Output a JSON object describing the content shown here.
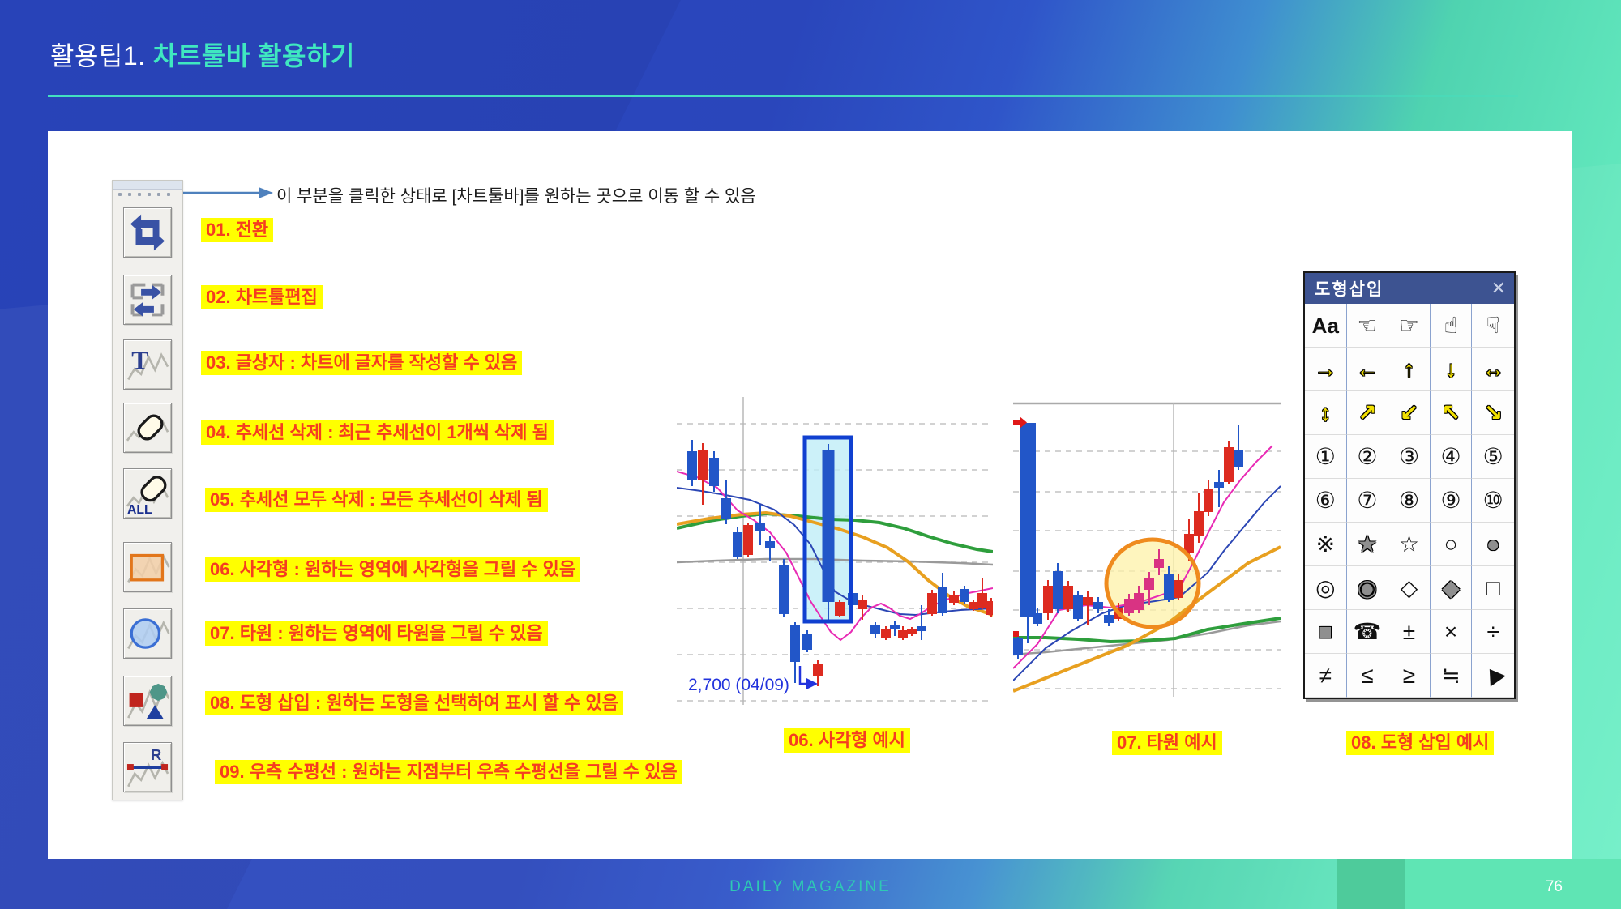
{
  "slide": {
    "title_prefix": "활용팁1. ",
    "title_main": "차트툴바 활용하기",
    "footer": "DAILY MAGAZINE",
    "page_number": "76"
  },
  "annotation": {
    "text": "이 부분을 클릭한 상태로 [차트툴바]를 원하는 곳으로 이동 할 수 있음"
  },
  "toolbar": {
    "buttons": [
      {
        "icon": "switch-icon",
        "tooltip": "전환"
      },
      {
        "icon": "chart-tool-edit-icon",
        "tooltip": "차트툴편집"
      },
      {
        "icon": "text-box-icon",
        "tooltip": "글상자"
      },
      {
        "icon": "trendline-delete-icon",
        "tooltip": "추세선 삭제"
      },
      {
        "icon": "trendline-delete-all-icon",
        "tooltip": "추세선 모두 삭제"
      },
      {
        "icon": "rectangle-icon",
        "tooltip": "사각형"
      },
      {
        "icon": "ellipse-icon",
        "tooltip": "타원"
      },
      {
        "icon": "shape-insert-icon",
        "tooltip": "도형 삽입"
      },
      {
        "icon": "right-horizontal-line-icon",
        "tooltip": "우측 수평선"
      }
    ]
  },
  "labels": [
    "01. 전환",
    "02. 차트툴편집",
    "03. 글상자 : 차트에 글자를 작성할 수 있음",
    "04. 추세선 삭제 : 최근 추세선이 1개씩 삭제 됨",
    "05. 추세선 모두 삭제 : 모든 추세선이 삭제 됨",
    "06. 사각형 : 원하는 영역에 사각형을 그릴 수 있음",
    "07. 타원 : 원하는 영역에 타원을 그릴 수 있음",
    "08. 도형 삽입 : 원하는 도형을 선택하여 표시 할 수 있음",
    "09. 우측 수평선 : 원하는 지점부터 우측 수평선을 그릴 수 있음"
  ],
  "dialog": {
    "title": "도형삽입",
    "close_glyph": "✕",
    "caption": "08. 도형 삽입 예시",
    "cells": [
      {
        "glyph": "Aa",
        "name": "text-label",
        "cls": "aa"
      },
      {
        "glyph": "☜",
        "name": "hand-point-left",
        "cls": ""
      },
      {
        "glyph": "☞",
        "name": "hand-point-right",
        "cls": ""
      },
      {
        "glyph": "☝",
        "name": "hand-point-up",
        "cls": ""
      },
      {
        "glyph": "☟",
        "name": "hand-point-down",
        "cls": ""
      },
      {
        "glyph": "→",
        "name": "arrow-right",
        "cls": "yellow"
      },
      {
        "glyph": "←",
        "name": "arrow-left",
        "cls": "yellow"
      },
      {
        "glyph": "↑",
        "name": "arrow-up",
        "cls": "yellow"
      },
      {
        "glyph": "↓",
        "name": "arrow-down",
        "cls": "yellow"
      },
      {
        "glyph": "↔",
        "name": "arrow-left-right",
        "cls": "yellow"
      },
      {
        "glyph": "↕",
        "name": "arrow-up-down",
        "cls": "yellow"
      },
      {
        "glyph": "↗",
        "name": "arrow-up-right",
        "cls": "yellow"
      },
      {
        "glyph": "↙",
        "name": "arrow-down-left",
        "cls": "yellow"
      },
      {
        "glyph": "↖",
        "name": "arrow-up-left",
        "cls": "yellow"
      },
      {
        "glyph": "↘",
        "name": "arrow-down-right",
        "cls": "yellow"
      },
      {
        "glyph": "①",
        "name": "circled-1",
        "cls": ""
      },
      {
        "glyph": "②",
        "name": "circled-2",
        "cls": ""
      },
      {
        "glyph": "③",
        "name": "circled-3",
        "cls": ""
      },
      {
        "glyph": "④",
        "name": "circled-4",
        "cls": ""
      },
      {
        "glyph": "⑤",
        "name": "circled-5",
        "cls": ""
      },
      {
        "glyph": "⑥",
        "name": "circled-6",
        "cls": ""
      },
      {
        "glyph": "⑦",
        "name": "circled-7",
        "cls": ""
      },
      {
        "glyph": "⑧",
        "name": "circled-8",
        "cls": ""
      },
      {
        "glyph": "⑨",
        "name": "circled-9",
        "cls": ""
      },
      {
        "glyph": "⑩",
        "name": "circled-10",
        "cls": ""
      },
      {
        "glyph": "※",
        "name": "reference-mark",
        "cls": ""
      },
      {
        "glyph": "★",
        "name": "star-filled",
        "cls": "grayfill"
      },
      {
        "glyph": "☆",
        "name": "star-outline",
        "cls": ""
      },
      {
        "glyph": "○",
        "name": "octagon-outline",
        "cls": ""
      },
      {
        "glyph": "●",
        "name": "octagon-filled",
        "cls": "grayfill"
      },
      {
        "glyph": "◎",
        "name": "double-circle",
        "cls": ""
      },
      {
        "glyph": "◉",
        "name": "fisheye-circle",
        "cls": "grayfill"
      },
      {
        "glyph": "◇",
        "name": "diamond-outline",
        "cls": ""
      },
      {
        "glyph": "◆",
        "name": "diamond-filled",
        "cls": "grayfill"
      },
      {
        "glyph": "□",
        "name": "square-outline",
        "cls": ""
      },
      {
        "glyph": "■",
        "name": "square-filled",
        "cls": "grayfill"
      },
      {
        "glyph": "☎",
        "name": "telephone",
        "cls": ""
      },
      {
        "glyph": "±",
        "name": "plus-minus",
        "cls": ""
      },
      {
        "glyph": "×",
        "name": "multiply",
        "cls": ""
      },
      {
        "glyph": "÷",
        "name": "divide",
        "cls": ""
      },
      {
        "glyph": "≠",
        "name": "not-equal",
        "cls": ""
      },
      {
        "glyph": "≤",
        "name": "less-equal",
        "cls": ""
      },
      {
        "glyph": "≥",
        "name": "greater-equal",
        "cls": ""
      },
      {
        "glyph": "≒",
        "name": "approx-equal",
        "cls": ""
      },
      {
        "glyph": "▶",
        "name": "mouse-cursor",
        "cls": "cursor"
      }
    ]
  },
  "charts": {
    "rect_example": {
      "type": "candlestick",
      "caption": "06. 사각형 예시",
      "price_label": "2,700 (04/09)",
      "highlight": "rectangle",
      "candles": [
        [
          19,
          53,
          67,
          102,
          110,
          "d"
        ],
        [
          32,
          57,
          65,
          103,
          133,
          "u"
        ],
        [
          46,
          67,
          75,
          110,
          117,
          "d"
        ],
        [
          61,
          103,
          125,
          150,
          157,
          "d"
        ],
        [
          75,
          160,
          167,
          198,
          200,
          "d"
        ],
        [
          88,
          155,
          158,
          195,
          198,
          "u"
        ],
        [
          103,
          133,
          155,
          165,
          183,
          "d"
        ],
        [
          115,
          172,
          178,
          186,
          203,
          "d"
        ],
        [
          132,
          200,
          207,
          268,
          272,
          "d"
        ],
        [
          146,
          278,
          282,
          327,
          353,
          "d"
        ],
        [
          161,
          288,
          292,
          312,
          315,
          "d"
        ],
        [
          174,
          325,
          330,
          345,
          357,
          "u"
        ],
        [
          187,
          58,
          66,
          253,
          275,
          "d",
          15
        ],
        [
          201,
          250,
          253,
          270,
          272,
          "u"
        ],
        [
          217,
          238,
          242,
          257,
          260,
          "d"
        ],
        [
          229,
          245,
          250,
          262,
          275,
          "u"
        ],
        [
          245,
          278,
          282,
          292,
          297,
          "d"
        ],
        [
          258,
          283,
          287,
          297,
          300,
          "u"
        ],
        [
          269,
          277,
          281,
          287,
          295,
          "d"
        ],
        [
          279,
          283,
          288,
          298,
          300,
          "u"
        ],
        [
          290,
          284,
          287,
          293,
          295,
          "u"
        ],
        [
          302,
          257,
          283,
          289,
          300,
          "d"
        ],
        [
          315,
          238,
          242,
          268,
          270,
          "u"
        ],
        [
          328,
          217,
          235,
          267,
          270,
          "d"
        ],
        [
          342,
          240,
          245,
          254,
          257,
          "u"
        ],
        [
          355,
          233,
          237,
          253,
          255,
          "d"
        ],
        [
          366,
          250,
          253,
          262,
          264,
          "u"
        ],
        [
          377,
          223,
          242,
          260,
          262,
          "u"
        ],
        [
          388,
          248,
          252,
          269,
          271,
          "u"
        ]
      ],
      "ma": {
        "green": "0,162 40,153 80,147 110,144 150,147 190,151 220,152 250,155 280,162 310,172 340,181 370,188 390,191",
        "orange": "0,157 40,150 80,145 110,143 140,147 170,155 200,163 230,173 260,186 285,203 310,226 335,245 360,259 390,269",
        "gray": "0,204 50,202 110,200 170,200 230,202 290,203 350,205 390,207",
        "blue": "0,112 30,116 60,121 90,127 120,139 145,158 165,182 180,212 195,240 215,252 235,258 255,263 275,268 295,269 320,266 350,263 390,261",
        "magenta": "0,92 25,99 50,112 75,140 95,152 115,167 135,192 150,222 165,252 178,272 190,290 202,300 215,290 228,272 240,260 252,255 262,260 275,270 288,274 300,268 315,258 330,251 345,246 360,242 375,239 390,236"
      }
    },
    "ellipse_example": {
      "type": "candlestick",
      "caption": "07. 타원 예시",
      "highlight": "ellipse",
      "candles": [
        [
          6,
          288,
          293,
          313,
          318,
          "d"
        ],
        [
          18,
          27,
          27,
          267,
          299,
          "d",
          20
        ],
        [
          30,
          256,
          262,
          275,
          278,
          "d"
        ],
        [
          43,
          221,
          228,
          262,
          270,
          "u"
        ],
        [
          55,
          200,
          210,
          257,
          262,
          "d"
        ],
        [
          68,
          222,
          228,
          257,
          261,
          "u"
        ],
        [
          80,
          234,
          240,
          269,
          272,
          "d"
        ],
        [
          92,
          234,
          242,
          252,
          276,
          "u"
        ],
        [
          105,
          242,
          248,
          257,
          262,
          "d"
        ],
        [
          118,
          257,
          264,
          274,
          278,
          "d"
        ],
        [
          130,
          249,
          256,
          269,
          272,
          "u"
        ],
        [
          143,
          238,
          244,
          262,
          265,
          "p"
        ],
        [
          155,
          228,
          237,
          258,
          262,
          "p"
        ],
        [
          168,
          211,
          219,
          233,
          252,
          "p"
        ],
        [
          180,
          183,
          195,
          206,
          215,
          "p"
        ],
        [
          192,
          204,
          214,
          245,
          248,
          "d"
        ],
        [
          204,
          214,
          221,
          243,
          246,
          "u"
        ],
        [
          217,
          146,
          164,
          188,
          198,
          "u"
        ],
        [
          229,
          114,
          136,
          167,
          175,
          "u"
        ],
        [
          241,
          97,
          109,
          137,
          142,
          "u"
        ],
        [
          254,
          85,
          100,
          107,
          131,
          "d"
        ],
        [
          266,
          49,
          57,
          100,
          103,
          "u"
        ],
        [
          278,
          29,
          61,
          82,
          85,
          "d"
        ]
      ],
      "ma": {
        "green": "0,292 40,292 80,294 120,297 160,296 200,293 240,282 290,274 330,268",
        "orange": "0,358 40,342 90,322 140,302 190,275 240,237 290,200 330,180",
        "gray": "0,313 40,310 90,305 140,300 190,295 240,287 290,277 330,272",
        "blue": "0,345 40,305 70,285 110,262 140,252 175,247 205,242 240,212 260,185 285,155 310,125 330,105",
        "magenta": "0,330 30,300 57,258 90,252 120,255 157,248 190,237 207,228 223,198 243,158 260,125 280,98 300,75 320,55"
      }
    }
  },
  "colors": {
    "candle_up": "#dd2b20",
    "candle_down": "#2256c8",
    "candle_pink": "#d93383",
    "highlight_rect_fill": "#bfeef7",
    "highlight_rect_stroke": "#1040d0",
    "highlight_ellipse_fill": "#fdf2a8",
    "highlight_ellipse_stroke": "#ef8b1e",
    "label_bg": "#ffff00",
    "label_text": "#f53d20",
    "title_accent": "#3fe8c0",
    "dialog_titlebar": "#3d5391"
  }
}
